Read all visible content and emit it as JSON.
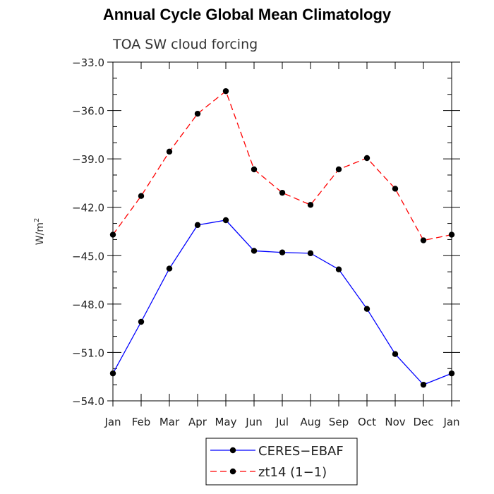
{
  "title": "Annual Cycle Global Mean Climatology",
  "chart_data": {
    "type": "line",
    "title": "Annual Cycle Global Mean Climatology",
    "subtitle": "TOA SW cloud forcing",
    "xlabel": "",
    "ylabel": "W/m",
    "ylabel_superscript": "2",
    "categories": [
      "Jan",
      "Feb",
      "Mar",
      "Apr",
      "May",
      "Jun",
      "Jul",
      "Aug",
      "Sep",
      "Oct",
      "Nov",
      "Dec",
      "Jan"
    ],
    "ylim": [
      -54.0,
      -33.0
    ],
    "yticks": [
      -33.0,
      -36.0,
      -39.0,
      -42.0,
      -45.0,
      -48.0,
      -51.0,
      -54.0
    ],
    "ytick_labels": [
      "−33.0",
      "−36.0",
      "−39.0",
      "−42.0",
      "−45.0",
      "−48.0",
      "−51.0",
      "−54.0"
    ],
    "grid": false,
    "legend_position": "bottom-center",
    "series": [
      {
        "name": "CERES−EBAF",
        "color": "#0000ff",
        "line_style": "solid",
        "values": [
          -52.3,
          -49.1,
          -45.8,
          -43.1,
          -42.8,
          -44.7,
          -44.8,
          -44.85,
          -45.85,
          -48.3,
          -51.1,
          -53.0,
          -52.3
        ]
      },
      {
        "name": "zt14 (1−1)",
        "color": "#ff0000",
        "line_style": "dashed",
        "values": [
          -43.7,
          -41.3,
          -38.55,
          -36.2,
          -34.8,
          -39.65,
          -41.1,
          -41.85,
          -39.65,
          -38.95,
          -40.85,
          -44.05,
          -43.7
        ]
      }
    ]
  }
}
